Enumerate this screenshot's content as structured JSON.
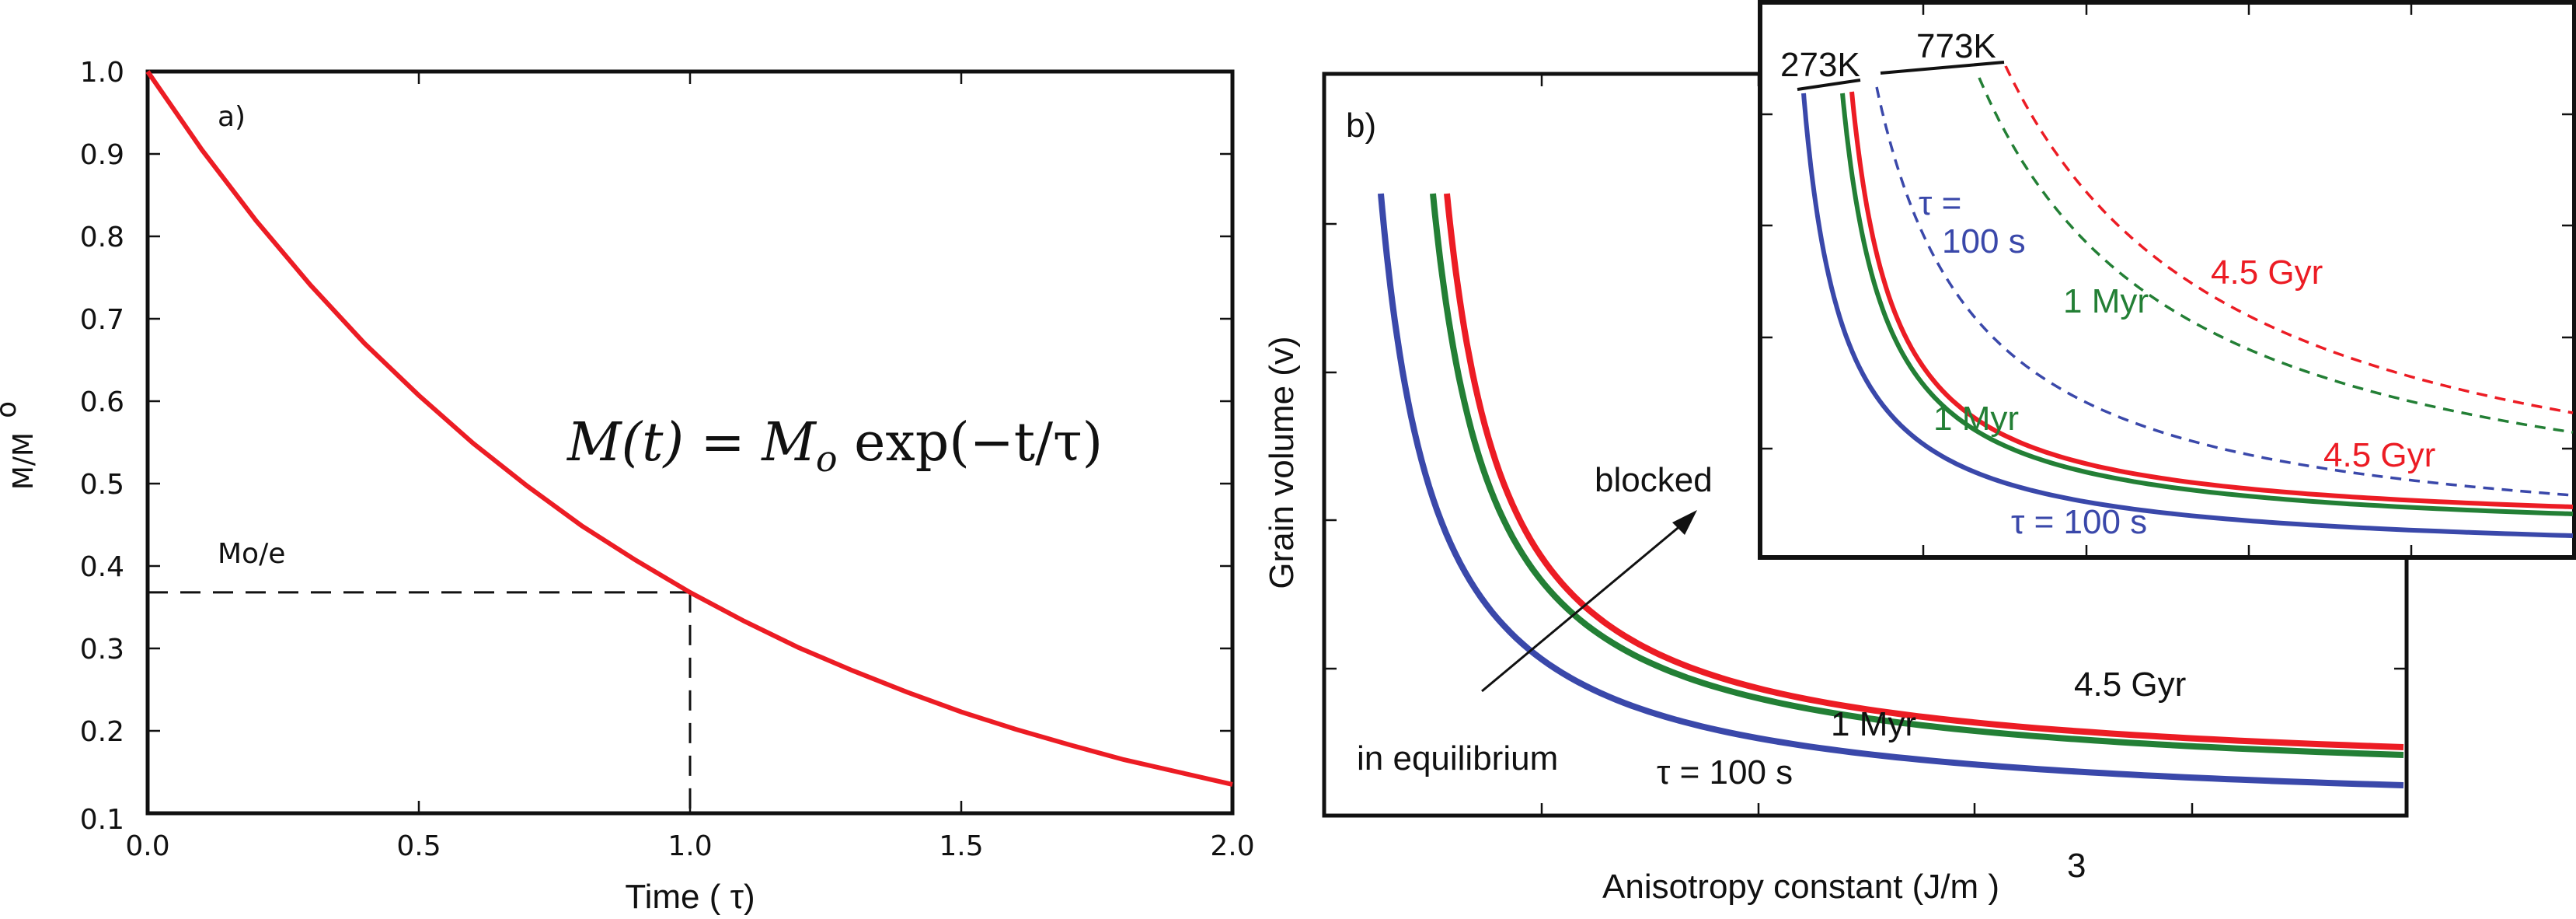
{
  "chart_data": [
    {
      "panel_label": "a)",
      "type": "line",
      "xlabel": "Time ( τ)",
      "ylabel": "M/M",
      "ylabel_sub": "o",
      "xlim": [
        0,
        2
      ],
      "ylim": [
        0.1,
        1.0
      ],
      "grid": false,
      "xticks": [
        "0.0",
        "0.5",
        "1.0",
        "1.5",
        "2.0"
      ],
      "yticks": [
        "0.1",
        "0.2",
        "0.3",
        "0.4",
        "0.5",
        "0.6",
        "0.7",
        "0.8",
        "0.9",
        "1.0"
      ],
      "equation": {
        "lhs": "M(t) = M",
        "sub": "o",
        "rhs": " exp(−t/τ)"
      },
      "series": [
        {
          "color": "#ec1c24",
          "x": [
            0,
            0.1,
            0.2,
            0.3,
            0.4,
            0.5,
            0.6,
            0.7,
            0.8,
            0.9,
            1.0,
            1.1,
            1.2,
            1.3,
            1.4,
            1.5,
            1.6,
            1.7,
            1.8,
            1.9,
            2.0
          ],
          "y": [
            1.0,
            0.905,
            0.819,
            0.741,
            0.67,
            0.607,
            0.549,
            0.497,
            0.449,
            0.407,
            0.368,
            0.333,
            0.301,
            0.273,
            0.247,
            0.223,
            0.202,
            0.183,
            0.165,
            0.15,
            0.135
          ]
        }
      ],
      "reference": {
        "label": "Mo/e",
        "x": 1.0,
        "y": 0.368,
        "style": "dashed"
      }
    },
    {
      "panel_label": "b)",
      "type": "line",
      "xlabel": "Anisotropy constant (J/m )",
      "xlabel_sup": "3",
      "ylabel": "Grain volume  (v)",
      "grid": false,
      "series": [
        {
          "name": "τ = 100 s",
          "color": "#3a48aa",
          "style": "solid"
        },
        {
          "name": "1 Myr",
          "color": "#237f35",
          "style": "solid"
        },
        {
          "name": "4.5 Gyr",
          "color": "#ec1c24",
          "style": "solid"
        }
      ],
      "annotations": {
        "upper": "blocked",
        "lower": "in equilibrium"
      },
      "inset": {
        "temperature_labels": [
          "273K",
          "773K"
        ],
        "series": [
          {
            "name": "τ = 100 s",
            "temperature": "273K",
            "color": "#3a48aa",
            "style": "solid"
          },
          {
            "name": "1 Myr",
            "temperature": "273K",
            "color": "#237f35",
            "style": "solid"
          },
          {
            "name": "4.5 Gyr",
            "temperature": "273K",
            "color": "#ec1c24",
            "style": "solid"
          },
          {
            "name": "τ = 100 s",
            "label_line1": "τ =",
            "label_line2": "100 s",
            "temperature": "773K",
            "color": "#3a48aa",
            "style": "dashed"
          },
          {
            "name": "1 Myr",
            "temperature": "773K",
            "color": "#237f35",
            "style": "dashed"
          },
          {
            "name": "4.5 Gyr",
            "temperature": "773K",
            "color": "#ec1c24",
            "style": "dashed"
          }
        ]
      }
    }
  ]
}
